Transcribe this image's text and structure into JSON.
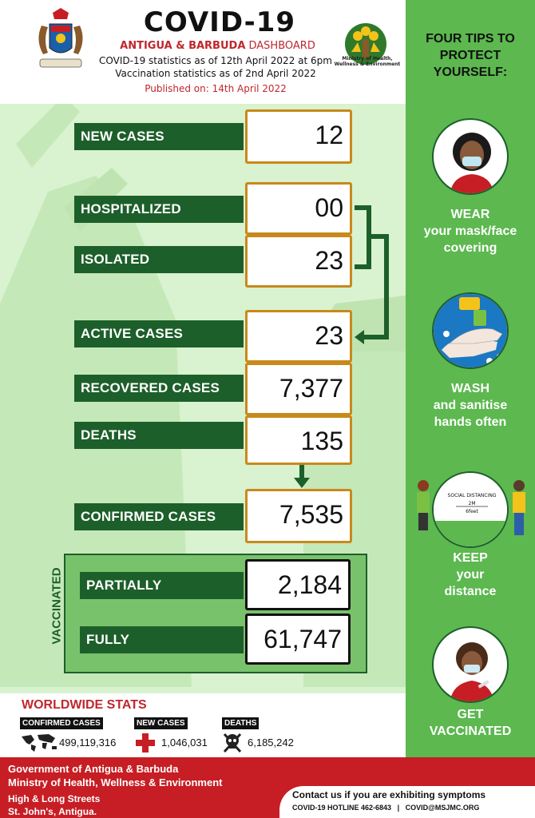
{
  "header": {
    "title": "COVID-19",
    "subtitle_bold": "ANTIGUA & BARBUDA",
    "subtitle_rest": " DASHBOARD",
    "line1": "COVID-19 statistics as of 12th April 2022 at 6pm",
    "line2": "Vaccination statistics as of 2nd April 2022",
    "published": "Published on: 14th April 2022",
    "ministry_logo_text": "Ministry of Health, Wellness & Environment"
  },
  "stats": {
    "new_cases": {
      "label": "NEW CASES",
      "value": "12"
    },
    "hospitalized": {
      "label": "HOSPITALIZED",
      "value": "00"
    },
    "isolated": {
      "label": "ISOLATED",
      "value": "23"
    },
    "active_cases": {
      "label": "ACTIVE CASES",
      "value": "23"
    },
    "recovered": {
      "label": "RECOVERED CASES",
      "value": "7,377"
    },
    "deaths": {
      "label": "DEATHS",
      "value": "135"
    },
    "confirmed": {
      "label": "CONFIRMED CASES",
      "value": "7,535"
    }
  },
  "vaccinated": {
    "heading": "VACCINATED",
    "partially": {
      "label": "PARTIALLY",
      "value": "2,184"
    },
    "fully": {
      "label": "FULLY",
      "value": "61,747"
    }
  },
  "worldwide": {
    "title": "WORLDWIDE STATS",
    "confirmed_label": "CONFIRMED CASES",
    "confirmed_value": "499,119,316",
    "new_label": "NEW CASES",
    "new_value": "1,046,031",
    "deaths_label": "DEATHS",
    "deaths_value": "6,185,242"
  },
  "tips": {
    "title": "FOUR TIPS TO PROTECT YOURSELF:",
    "items": [
      {
        "line1": "WEAR",
        "line2": "your mask/face",
        "line3": "covering",
        "icon": "mask-woman-icon"
      },
      {
        "line1": "WASH",
        "line2": "and sanitise",
        "line3": "hands often",
        "icon": "handwash-icon"
      },
      {
        "line1": "KEEP",
        "line2": "your",
        "line3": "distance",
        "icon": "social-distance-icon"
      },
      {
        "line1": "GET",
        "line2": "VACCINATED",
        "line3": "",
        "icon": "vaccine-icon"
      }
    ],
    "distance_sign": "SOCIAL DISTANCING",
    "distance_m": "2M",
    "distance_ft": "6feet"
  },
  "footer": {
    "gov1": "Government of Antigua & Barbuda",
    "gov2": "Ministry of Health, Wellness & Environment",
    "addr1": "High & Long Streets",
    "addr2": "St. John's, Antigua.",
    "contact_title": "Contact us if you are exhibiting symptoms",
    "hotline": "COVID-19 HOTLINE 462-6843",
    "separator": "|",
    "email": "COVID@MSJMC.ORG"
  },
  "colors": {
    "dark_green": "#1d5f2a",
    "mid_green": "#5cb84f",
    "light_green": "#d9f2d0",
    "gold": "#c9891a",
    "red": "#c61e24"
  }
}
